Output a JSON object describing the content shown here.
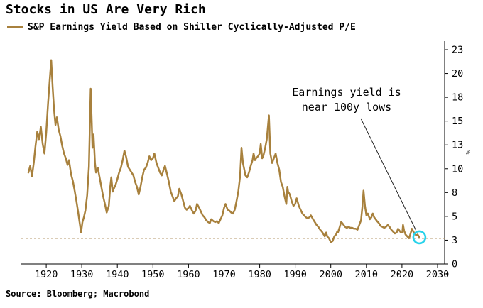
{
  "title": "Stocks in US Are Very Rich",
  "legend": {
    "label": "S&P Earnings Yield Based on Shiller Cyclically-Adjusted P/E",
    "color": "#a8813d"
  },
  "annotation": {
    "line1": "Earnings yield is",
    "line2": "near 100y lows"
  },
  "source": "Source: Bloomberg; Macrobond",
  "chart_data": {
    "type": "line",
    "title": "Stocks in US Are Very Rich",
    "series_name": "S&P Earnings Yield Based on Shiller Cyclically-Adjusted P/E",
    "line_color": "#a8813d",
    "unit": "%",
    "grid": false,
    "legend_position": "top-left",
    "y_axis_side": "right",
    "xlim": [
      1913,
      2032
    ],
    "ylim": [
      0,
      23
    ],
    "x_ticks": [
      1920,
      1930,
      1940,
      1950,
      1960,
      1970,
      1980,
      1990,
      2000,
      2010,
      2020,
      2030
    ],
    "y_tick_values": [
      0,
      2.5,
      5,
      7.5,
      10,
      12.5,
      15,
      17.5,
      20,
      22.5
    ],
    "y_tick_labels": [
      "0",
      "3",
      "5",
      "8",
      "10",
      "13",
      "15",
      "18",
      "20",
      "23"
    ],
    "dashed_line_value": 2.7,
    "dashed_line_color": "#b59a6d",
    "highlight": {
      "x": 2024.9,
      "y": 2.8,
      "ring_color": "#27d2ea"
    },
    "points": [
      [
        1915,
        9.6
      ],
      [
        1915.5,
        10.3
      ],
      [
        1916,
        9.2
      ],
      [
        1916.5,
        10.6
      ],
      [
        1917,
        12.4
      ],
      [
        1917.5,
        13.9
      ],
      [
        1918,
        13.1
      ],
      [
        1918.5,
        14.4
      ],
      [
        1919,
        12.6
      ],
      [
        1919.5,
        11.6
      ],
      [
        1920,
        13.8
      ],
      [
        1920.5,
        16.8
      ],
      [
        1921,
        19.4
      ],
      [
        1921.4,
        21.4
      ],
      [
        1921.8,
        18.6
      ],
      [
        1922.2,
        16.2
      ],
      [
        1922.6,
        14.6
      ],
      [
        1923,
        15.4
      ],
      [
        1923.5,
        14.1
      ],
      [
        1924,
        13.4
      ],
      [
        1924.5,
        12.4
      ],
      [
        1925,
        11.6
      ],
      [
        1925.5,
        11.1
      ],
      [
        1926,
        10.4
      ],
      [
        1926.4,
        10.9
      ],
      [
        1927,
        9.4
      ],
      [
        1927.5,
        8.7
      ],
      [
        1928,
        7.7
      ],
      [
        1928.5,
        6.6
      ],
      [
        1929,
        5.4
      ],
      [
        1929.5,
        4.1
      ],
      [
        1929.8,
        3.3
      ],
      [
        1930.2,
        4.4
      ],
      [
        1930.6,
        4.9
      ],
      [
        1931,
        5.6
      ],
      [
        1931.5,
        7.2
      ],
      [
        1932,
        10.2
      ],
      [
        1932.5,
        18.4
      ],
      [
        1932.8,
        14.8
      ],
      [
        1933,
        12.2
      ],
      [
        1933.3,
        13.6
      ],
      [
        1933.7,
        10.6
      ],
      [
        1934,
        9.6
      ],
      [
        1934.5,
        10.1
      ],
      [
        1935,
        9.1
      ],
      [
        1935.5,
        8.1
      ],
      [
        1936,
        7.1
      ],
      [
        1936.5,
        6.3
      ],
      [
        1937,
        5.4
      ],
      [
        1937.6,
        6.1
      ],
      [
        1938,
        8.1
      ],
      [
        1938.3,
        9.1
      ],
      [
        1938.7,
        7.6
      ],
      [
        1939,
        7.9
      ],
      [
        1939.5,
        8.3
      ],
      [
        1940,
        8.9
      ],
      [
        1940.5,
        9.6
      ],
      [
        1941,
        10.1
      ],
      [
        1941.5,
        10.9
      ],
      [
        1942,
        11.9
      ],
      [
        1942.5,
        11.2
      ],
      [
        1943,
        10.2
      ],
      [
        1943.5,
        9.9
      ],
      [
        1944,
        9.6
      ],
      [
        1944.5,
        9.3
      ],
      [
        1945,
        8.6
      ],
      [
        1945.5,
        8.1
      ],
      [
        1946,
        7.3
      ],
      [
        1946.5,
        8.1
      ],
      [
        1947,
        9.1
      ],
      [
        1947.5,
        9.9
      ],
      [
        1948,
        10.1
      ],
      [
        1948.5,
        10.6
      ],
      [
        1949,
        11.3
      ],
      [
        1949.5,
        10.9
      ],
      [
        1950,
        11.1
      ],
      [
        1950.4,
        11.6
      ],
      [
        1951,
        10.6
      ],
      [
        1951.5,
        10.1
      ],
      [
        1952,
        9.6
      ],
      [
        1952.5,
        9.3
      ],
      [
        1953,
        9.9
      ],
      [
        1953.4,
        10.3
      ],
      [
        1954,
        9.4
      ],
      [
        1954.5,
        8.6
      ],
      [
        1955,
        7.6
      ],
      [
        1955.5,
        7.1
      ],
      [
        1956,
        6.6
      ],
      [
        1956.5,
        6.9
      ],
      [
        1957,
        7.1
      ],
      [
        1957.4,
        7.9
      ],
      [
        1958,
        7.3
      ],
      [
        1958.5,
        6.6
      ],
      [
        1959,
        5.9
      ],
      [
        1959.5,
        5.7
      ],
      [
        1960,
        5.9
      ],
      [
        1960.4,
        6.1
      ],
      [
        1961,
        5.6
      ],
      [
        1961.5,
        5.3
      ],
      [
        1962,
        5.6
      ],
      [
        1962.4,
        6.3
      ],
      [
        1963,
        5.9
      ],
      [
        1963.5,
        5.5
      ],
      [
        1964,
        5.1
      ],
      [
        1964.5,
        4.9
      ],
      [
        1965,
        4.6
      ],
      [
        1965.5,
        4.4
      ],
      [
        1966,
        4.3
      ],
      [
        1966.4,
        4.7
      ],
      [
        1967,
        4.5
      ],
      [
        1967.5,
        4.4
      ],
      [
        1968,
        4.5
      ],
      [
        1968.5,
        4.3
      ],
      [
        1969,
        4.7
      ],
      [
        1969.5,
        5.1
      ],
      [
        1970,
        5.9
      ],
      [
        1970.4,
        6.3
      ],
      [
        1971,
        5.7
      ],
      [
        1971.5,
        5.6
      ],
      [
        1972,
        5.4
      ],
      [
        1972.5,
        5.3
      ],
      [
        1973,
        5.7
      ],
      [
        1973.5,
        6.6
      ],
      [
        1974,
        7.6
      ],
      [
        1974.5,
        9.2
      ],
      [
        1974.9,
        12.2
      ],
      [
        1975.3,
        10.6
      ],
      [
        1975.7,
        9.9
      ],
      [
        1976,
        9.3
      ],
      [
        1976.5,
        9.1
      ],
      [
        1977,
        9.6
      ],
      [
        1977.5,
        10.3
      ],
      [
        1978,
        10.9
      ],
      [
        1978.3,
        11.6
      ],
      [
        1978.7,
        10.9
      ],
      [
        1979,
        11.1
      ],
      [
        1979.5,
        11.3
      ],
      [
        1980,
        11.6
      ],
      [
        1980.3,
        12.6
      ],
      [
        1980.7,
        11.1
      ],
      [
        1981,
        11.3
      ],
      [
        1981.5,
        12.1
      ],
      [
        1982,
        13.1
      ],
      [
        1982.6,
        15.6
      ],
      [
        1983,
        11.6
      ],
      [
        1983.5,
        10.6
      ],
      [
        1984,
        11.1
      ],
      [
        1984.5,
        11.6
      ],
      [
        1985,
        10.6
      ],
      [
        1985.5,
        9.9
      ],
      [
        1986,
        8.6
      ],
      [
        1986.5,
        8.1
      ],
      [
        1987,
        7.1
      ],
      [
        1987.5,
        6.3
      ],
      [
        1987.8,
        8.1
      ],
      [
        1988,
        7.6
      ],
      [
        1988.5,
        7.3
      ],
      [
        1989,
        6.6
      ],
      [
        1989.5,
        6.1
      ],
      [
        1990,
        6.3
      ],
      [
        1990.4,
        6.9
      ],
      [
        1991,
        6.1
      ],
      [
        1991.5,
        5.7
      ],
      [
        1992,
        5.3
      ],
      [
        1992.5,
        5.1
      ],
      [
        1993,
        4.9
      ],
      [
        1993.5,
        4.8
      ],
      [
        1994,
        4.9
      ],
      [
        1994.4,
        5.1
      ],
      [
        1995,
        4.7
      ],
      [
        1995.5,
        4.4
      ],
      [
        1996,
        4.1
      ],
      [
        1996.5,
        3.9
      ],
      [
        1997,
        3.6
      ],
      [
        1997.5,
        3.4
      ],
      [
        1998,
        3.1
      ],
      [
        1998.3,
        2.9
      ],
      [
        1998.7,
        3.3
      ],
      [
        1999,
        2.9
      ],
      [
        1999.5,
        2.7
      ],
      [
        2000,
        2.3
      ],
      [
        2000.5,
        2.4
      ],
      [
        2001,
        2.9
      ],
      [
        2001.5,
        3.1
      ],
      [
        2001.8,
        3.4
      ],
      [
        2002,
        3.3
      ],
      [
        2002.5,
        3.9
      ],
      [
        2002.9,
        4.4
      ],
      [
        2003.2,
        4.3
      ],
      [
        2003.6,
        4.1
      ],
      [
        2004,
        3.9
      ],
      [
        2004.5,
        3.8
      ],
      [
        2005,
        3.9
      ],
      [
        2005.5,
        3.8
      ],
      [
        2006,
        3.8
      ],
      [
        2006.5,
        3.7
      ],
      [
        2007,
        3.7
      ],
      [
        2007.5,
        3.6
      ],
      [
        2008,
        4.1
      ],
      [
        2008.5,
        4.6
      ],
      [
        2008.9,
        6.1
      ],
      [
        2009.2,
        7.7
      ],
      [
        2009.6,
        6.1
      ],
      [
        2010,
        5.1
      ],
      [
        2010.4,
        5.3
      ],
      [
        2011,
        4.7
      ],
      [
        2011.4,
        4.9
      ],
      [
        2011.8,
        5.3
      ],
      [
        2012.2,
        4.9
      ],
      [
        2012.6,
        4.7
      ],
      [
        2013,
        4.5
      ],
      [
        2013.5,
        4.3
      ],
      [
        2014,
        4.0
      ],
      [
        2014.5,
        3.9
      ],
      [
        2015,
        3.8
      ],
      [
        2015.5,
        3.9
      ],
      [
        2016,
        4.1
      ],
      [
        2016.5,
        3.9
      ],
      [
        2017,
        3.6
      ],
      [
        2017.5,
        3.4
      ],
      [
        2018,
        3.2
      ],
      [
        2018.5,
        3.3
      ],
      [
        2018.9,
        3.7
      ],
      [
        2019.3,
        3.5
      ],
      [
        2019.7,
        3.3
      ],
      [
        2020.1,
        3.3
      ],
      [
        2020.3,
        4.1
      ],
      [
        2020.6,
        3.5
      ],
      [
        2021,
        3.1
      ],
      [
        2021.5,
        2.9
      ],
      [
        2022,
        2.7
      ],
      [
        2022.5,
        3.3
      ],
      [
        2022.8,
        3.7
      ],
      [
        2023.2,
        3.4
      ],
      [
        2023.6,
        3.2
      ],
      [
        2024,
        3.0
      ],
      [
        2024.4,
        3.1
      ],
      [
        2024.9,
        2.8
      ]
    ]
  }
}
